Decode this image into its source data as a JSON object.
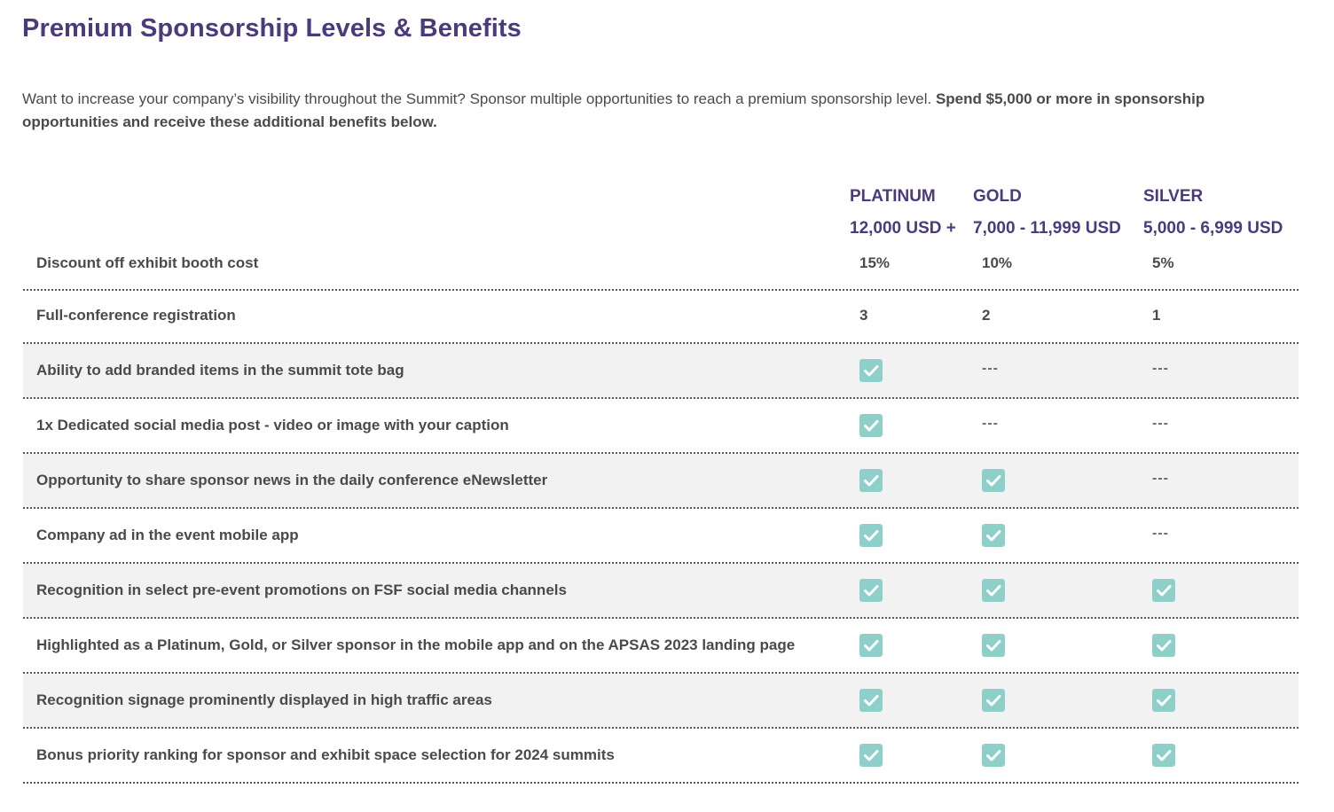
{
  "page": {
    "title": "Premium Sponsorship Levels & Benefits",
    "intro_text": "Want to increase your company’s visibility throughout the Summit? Sponsor multiple opportunities to reach a premium sponsorship level.  ",
    "intro_bold": "Spend $5,000 or more in sponsorship opportunities and receive these additional benefits below."
  },
  "colors": {
    "heading": "#4b3a7c",
    "check": "#8ecfca",
    "shaded_row": "#f2f2f2"
  },
  "tiers": [
    {
      "name": "PLATINUM",
      "price": "12,000 USD +"
    },
    {
      "name": "GOLD",
      "price": "7,000 - 11,999 USD"
    },
    {
      "name": "SILVER",
      "price": "5,000 - 6,999 USD"
    }
  ],
  "icons": {
    "included": "checkbox-checked-icon",
    "not_included": "---"
  },
  "rows": [
    {
      "label": "Discount off exhibit booth cost",
      "values": [
        "15%",
        "10%",
        "5%"
      ]
    },
    {
      "label": "Full-conference registration",
      "values": [
        "3",
        "2",
        "1"
      ]
    },
    {
      "label": "Ability to add branded items in the summit tote bag",
      "values": [
        "check",
        "---",
        "---"
      ]
    },
    {
      "label": "1x Dedicated social media post - video or image with your caption",
      "values": [
        "check",
        "---",
        "---"
      ]
    },
    {
      "label": "Opportunity to share sponsor news in the daily conference eNewsletter",
      "values": [
        "check",
        "check",
        "---"
      ]
    },
    {
      "label": "Company ad in the event mobile app",
      "values": [
        "check",
        "check",
        "---"
      ]
    },
    {
      "label": "Recognition in select pre-event promotions on FSF social media channels",
      "values": [
        "check",
        "check",
        "check"
      ]
    },
    {
      "label": "Highlighted as a Platinum, Gold, or Silver sponsor in the mobile app and on the APSAS 2023 landing page",
      "values": [
        "check",
        "check",
        "check"
      ]
    },
    {
      "label": "Recognition signage prominently displayed in high traffic areas",
      "values": [
        "check",
        "check",
        "check"
      ]
    },
    {
      "label": "Bonus priority ranking for sponsor and exhibit space selection for 2024 summits",
      "values": [
        "check",
        "check",
        "check"
      ]
    }
  ]
}
